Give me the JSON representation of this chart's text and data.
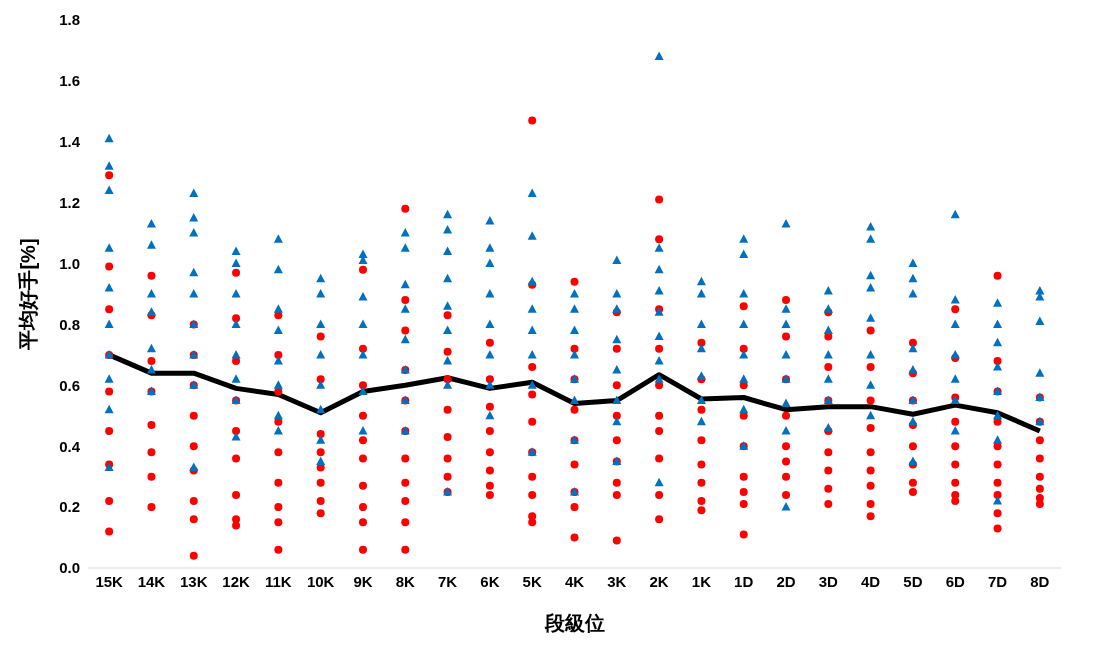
{
  "chart_data": {
    "type": "scatter",
    "xlabel": "段級位",
    "ylabel": "平均好手[%]",
    "categories": [
      "15K",
      "14K",
      "13K",
      "12K",
      "11K",
      "10K",
      "9K",
      "8K",
      "7K",
      "6K",
      "5K",
      "4K",
      "3K",
      "2K",
      "1K",
      "1D",
      "2D",
      "3D",
      "4D",
      "5D",
      "6D",
      "7D",
      "8D"
    ],
    "ylim": [
      0,
      1.8
    ],
    "yticks": [
      {
        "value": 0,
        "label": "0.0"
      },
      {
        "value": 0.2,
        "label": "0.2"
      },
      {
        "value": 0.4,
        "label": "0.4"
      },
      {
        "value": 0.6,
        "label": "0.6"
      },
      {
        "value": 0.8,
        "label": "0.8"
      },
      {
        "value": 1,
        "label": "1.0"
      },
      {
        "value": 1.2,
        "label": "1.2"
      },
      {
        "value": 1.4,
        "label": "1.4"
      },
      {
        "value": 1.6,
        "label": "1.6"
      },
      {
        "value": 1.8,
        "label": "1.8"
      }
    ],
    "grid": false,
    "series": [
      {
        "marker": "circle",
        "color": "#ff0000",
        "x": [
          "15K",
          "15K",
          "15K",
          "15K",
          "15K",
          "15K",
          "15K",
          "15K",
          "15K",
          "14K",
          "14K",
          "14K",
          "14K",
          "14K",
          "14K",
          "14K",
          "14K",
          "13K",
          "13K",
          "13K",
          "13K",
          "13K",
          "13K",
          "13K",
          "13K",
          "13K",
          "12K",
          "12K",
          "12K",
          "12K",
          "12K",
          "12K",
          "12K",
          "12K",
          "12K",
          "11K",
          "11K",
          "11K",
          "11K",
          "11K",
          "11K",
          "11K",
          "11K",
          "11K",
          "10K",
          "10K",
          "10K",
          "10K",
          "10K",
          "10K",
          "10K",
          "10K",
          "9K",
          "9K",
          "9K",
          "9K",
          "9K",
          "9K",
          "9K",
          "9K",
          "9K",
          "9K",
          "8K",
          "8K",
          "8K",
          "8K",
          "8K",
          "8K",
          "8K",
          "8K",
          "8K",
          "8K",
          "8K",
          "7K",
          "7K",
          "7K",
          "7K",
          "7K",
          "7K",
          "7K",
          "7K",
          "6K",
          "6K",
          "6K",
          "6K",
          "6K",
          "6K",
          "6K",
          "6K",
          "5K",
          "5K",
          "5K",
          "5K",
          "5K",
          "5K",
          "5K",
          "5K",
          "5K",
          "5K",
          "4K",
          "4K",
          "4K",
          "4K",
          "4K",
          "4K",
          "4K",
          "4K",
          "4K",
          "3K",
          "3K",
          "3K",
          "3K",
          "3K",
          "3K",
          "3K",
          "3K",
          "3K",
          "2K",
          "2K",
          "2K",
          "2K",
          "2K",
          "2K",
          "2K",
          "2K",
          "2K",
          "2K",
          "1K",
          "1K",
          "1K",
          "1K",
          "1K",
          "1K",
          "1K",
          "1K",
          "1D",
          "1D",
          "1D",
          "1D",
          "1D",
          "1D",
          "1D",
          "1D",
          "1D",
          "2D",
          "2D",
          "2D",
          "2D",
          "2D",
          "2D",
          "2D",
          "2D",
          "3D",
          "3D",
          "3D",
          "3D",
          "3D",
          "3D",
          "3D",
          "3D",
          "3D",
          "4D",
          "4D",
          "4D",
          "4D",
          "4D",
          "4D",
          "4D",
          "4D",
          "4D",
          "5D",
          "5D",
          "5D",
          "5D",
          "5D",
          "5D",
          "5D",
          "5D",
          "6D",
          "6D",
          "6D",
          "6D",
          "6D",
          "6D",
          "6D",
          "6D",
          "6D",
          "7D",
          "7D",
          "7D",
          "7D",
          "7D",
          "7D",
          "7D",
          "7D",
          "7D",
          "7D",
          "8D",
          "8D",
          "8D",
          "8D",
          "8D",
          "8D",
          "8D",
          "8D"
        ],
        "values": [
          1.29,
          0.99,
          0.85,
          0.7,
          0.58,
          0.45,
          0.34,
          0.22,
          0.12,
          0.96,
          0.83,
          0.68,
          0.58,
          0.47,
          0.38,
          0.3,
          0.2,
          0.8,
          0.7,
          0.6,
          0.5,
          0.4,
          0.32,
          0.22,
          0.16,
          0.04,
          0.97,
          0.82,
          0.68,
          0.55,
          0.45,
          0.36,
          0.24,
          0.16,
          0.14,
          0.83,
          0.7,
          0.58,
          0.48,
          0.38,
          0.28,
          0.2,
          0.15,
          0.06,
          0.76,
          0.62,
          0.44,
          0.38,
          0.33,
          0.28,
          0.22,
          0.18,
          0.98,
          0.72,
          0.6,
          0.5,
          0.42,
          0.36,
          0.27,
          0.2,
          0.15,
          0.06,
          1.18,
          0.88,
          0.78,
          0.65,
          0.55,
          0.45,
          0.36,
          0.28,
          0.22,
          0.15,
          0.06,
          0.83,
          0.71,
          0.62,
          0.52,
          0.43,
          0.36,
          0.3,
          0.25,
          0.74,
          0.62,
          0.53,
          0.45,
          0.38,
          0.32,
          0.27,
          0.24,
          1.47,
          0.93,
          0.66,
          0.57,
          0.48,
          0.38,
          0.3,
          0.24,
          0.17,
          0.15,
          0.94,
          0.72,
          0.62,
          0.52,
          0.42,
          0.34,
          0.25,
          0.2,
          0.1,
          0.84,
          0.72,
          0.6,
          0.5,
          0.42,
          0.35,
          0.28,
          0.24,
          0.09,
          1.21,
          1.08,
          0.85,
          0.72,
          0.6,
          0.5,
          0.45,
          0.36,
          0.24,
          0.16,
          0.74,
          0.62,
          0.52,
          0.42,
          0.34,
          0.28,
          0.22,
          0.19,
          0.86,
          0.72,
          0.6,
          0.5,
          0.4,
          0.3,
          0.25,
          0.21,
          0.11,
          0.88,
          0.76,
          0.62,
          0.5,
          0.4,
          0.35,
          0.3,
          0.24,
          0.84,
          0.76,
          0.66,
          0.55,
          0.45,
          0.38,
          0.32,
          0.26,
          0.21,
          0.78,
          0.66,
          0.55,
          0.46,
          0.38,
          0.32,
          0.27,
          0.21,
          0.17,
          0.74,
          0.64,
          0.55,
          0.47,
          0.4,
          0.34,
          0.28,
          0.25,
          0.85,
          0.69,
          0.56,
          0.48,
          0.4,
          0.34,
          0.28,
          0.24,
          0.22,
          0.96,
          0.68,
          0.58,
          0.48,
          0.4,
          0.34,
          0.28,
          0.24,
          0.18,
          0.13,
          0.56,
          0.48,
          0.42,
          0.36,
          0.3,
          0.26,
          0.23,
          0.21
        ]
      },
      {
        "marker": "triangle",
        "color": "#0070c0",
        "x": [
          "15K",
          "15K",
          "15K",
          "15K",
          "15K",
          "15K",
          "15K",
          "15K",
          "15K",
          "15K",
          "14K",
          "14K",
          "14K",
          "14K",
          "14K",
          "14K",
          "14K",
          "13K",
          "13K",
          "13K",
          "13K",
          "13K",
          "13K",
          "13K",
          "13K",
          "13K",
          "12K",
          "12K",
          "12K",
          "12K",
          "12K",
          "12K",
          "12K",
          "12K",
          "11K",
          "11K",
          "11K",
          "11K",
          "11K",
          "11K",
          "11K",
          "11K",
          "10K",
          "10K",
          "10K",
          "10K",
          "10K",
          "10K",
          "10K",
          "10K",
          "9K",
          "9K",
          "9K",
          "9K",
          "9K",
          "9K",
          "9K",
          "8K",
          "8K",
          "8K",
          "8K",
          "8K",
          "8K",
          "8K",
          "8K",
          "7K",
          "7K",
          "7K",
          "7K",
          "7K",
          "7K",
          "7K",
          "7K",
          "7K",
          "6K",
          "6K",
          "6K",
          "6K",
          "6K",
          "6K",
          "6K",
          "6K",
          "5K",
          "5K",
          "5K",
          "5K",
          "5K",
          "5K",
          "5K",
          "5K",
          "4K",
          "4K",
          "4K",
          "4K",
          "4K",
          "4K",
          "4K",
          "4K",
          "3K",
          "3K",
          "3K",
          "3K",
          "3K",
          "3K",
          "3K",
          "3K",
          "2K",
          "2K",
          "2K",
          "2K",
          "2K",
          "2K",
          "2K",
          "2K",
          "2K",
          "1K",
          "1K",
          "1K",
          "1K",
          "1K",
          "1K",
          "1K",
          "1D",
          "1D",
          "1D",
          "1D",
          "1D",
          "1D",
          "1D",
          "1D",
          "2D",
          "2D",
          "2D",
          "2D",
          "2D",
          "2D",
          "2D",
          "2D",
          "3D",
          "3D",
          "3D",
          "3D",
          "3D",
          "3D",
          "3D",
          "4D",
          "4D",
          "4D",
          "4D",
          "4D",
          "4D",
          "4D",
          "4D",
          "5D",
          "5D",
          "5D",
          "5D",
          "5D",
          "5D",
          "5D",
          "5D",
          "6D",
          "6D",
          "6D",
          "6D",
          "6D",
          "6D",
          "6D",
          "7D",
          "7D",
          "7D",
          "7D",
          "7D",
          "7D",
          "7D",
          "7D",
          "8D",
          "8D",
          "8D",
          "8D",
          "8D",
          "8D"
        ],
        "values": [
          1.41,
          1.32,
          1.24,
          1.05,
          0.92,
          0.8,
          0.7,
          0.62,
          0.52,
          0.33,
          1.13,
          1.06,
          0.9,
          0.84,
          0.72,
          0.65,
          0.58,
          1.23,
          1.15,
          1.1,
          0.97,
          0.9,
          0.8,
          0.7,
          0.6,
          0.33,
          1.04,
          1.0,
          0.9,
          0.8,
          0.7,
          0.62,
          0.55,
          0.43,
          1.08,
          0.98,
          0.85,
          0.78,
          0.68,
          0.6,
          0.5,
          0.45,
          0.95,
          0.9,
          0.8,
          0.7,
          0.6,
          0.52,
          0.42,
          0.35,
          1.03,
          1.01,
          0.89,
          0.8,
          0.7,
          0.58,
          0.45,
          1.1,
          1.05,
          0.93,
          0.85,
          0.75,
          0.65,
          0.55,
          0.45,
          1.16,
          1.11,
          1.04,
          0.95,
          0.86,
          0.78,
          0.68,
          0.6,
          0.25,
          1.14,
          1.05,
          1.0,
          0.9,
          0.8,
          0.7,
          0.6,
          0.5,
          1.23,
          1.09,
          0.94,
          0.85,
          0.78,
          0.7,
          0.6,
          0.38,
          0.9,
          0.85,
          0.78,
          0.7,
          0.62,
          0.55,
          0.42,
          0.25,
          1.01,
          0.9,
          0.85,
          0.75,
          0.65,
          0.55,
          0.48,
          0.35,
          1.68,
          1.05,
          0.98,
          0.91,
          0.84,
          0.76,
          0.68,
          0.62,
          0.28,
          0.94,
          0.9,
          0.8,
          0.72,
          0.63,
          0.55,
          0.48,
          1.08,
          1.03,
          0.9,
          0.8,
          0.7,
          0.62,
          0.52,
          0.4,
          1.13,
          0.85,
          0.8,
          0.7,
          0.62,
          0.54,
          0.45,
          0.2,
          0.91,
          0.85,
          0.78,
          0.7,
          0.62,
          0.55,
          0.46,
          1.12,
          1.08,
          0.96,
          0.92,
          0.82,
          0.7,
          0.6,
          0.5,
          1.0,
          0.95,
          0.9,
          0.72,
          0.65,
          0.55,
          0.48,
          0.35,
          1.16,
          0.88,
          0.8,
          0.7,
          0.62,
          0.55,
          0.45,
          0.87,
          0.8,
          0.74,
          0.66,
          0.58,
          0.5,
          0.42,
          0.22,
          0.91,
          0.89,
          0.81,
          0.64,
          0.56,
          0.48
        ]
      },
      {
        "type": "line",
        "marker": "none",
        "line_style": "solid",
        "color": "#000000",
        "values": [
          0.7,
          0.64,
          0.64,
          0.59,
          0.57,
          0.51,
          0.58,
          0.6,
          0.625,
          0.59,
          0.61,
          0.54,
          0.55,
          0.635,
          0.555,
          0.56,
          0.52,
          0.53,
          0.53,
          0.505,
          0.535,
          0.51,
          0.45
        ]
      }
    ]
  }
}
